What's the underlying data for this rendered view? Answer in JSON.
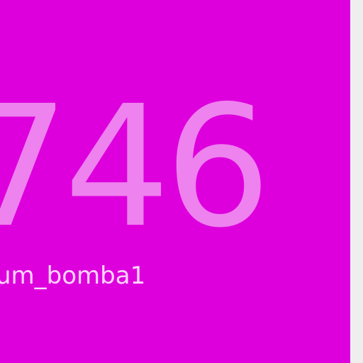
{
  "tile": {
    "value": "746",
    "label": "um_bomba1",
    "background_color": "#dd00dd",
    "value_color": "#ee82ee",
    "label_color": "#ffd6ff"
  },
  "page": {
    "background_color": "#eeeeee"
  }
}
